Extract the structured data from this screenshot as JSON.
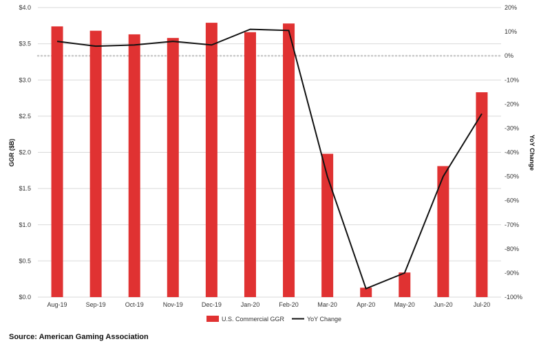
{
  "chart_data": {
    "type": "bar+line",
    "categories": [
      "Aug-19",
      "Sep-19",
      "Oct-19",
      "Nov-19",
      "Dec-19",
      "Jan-20",
      "Feb-20",
      "Mar-20",
      "Apr-20",
      "May-20",
      "Jun-20",
      "Jul-20"
    ],
    "series": [
      {
        "name": "U.S. Commercial GGR",
        "type": "bar",
        "axis": "left",
        "color": "#e03232",
        "values": [
          3.74,
          3.68,
          3.63,
          3.58,
          3.79,
          3.66,
          3.78,
          1.98,
          0.13,
          0.34,
          1.81,
          2.83
        ]
      },
      {
        "name": "YoY Change",
        "type": "line",
        "axis": "right",
        "color": "#111111",
        "values": [
          6,
          4,
          4.5,
          6,
          4.5,
          11,
          10.5,
          -50,
          -96.5,
          -90,
          -50,
          -24
        ]
      }
    ],
    "ylabel": "GGR ($B)",
    "y2label": "YoY Change",
    "ylim": [
      0,
      4
    ],
    "y2lim": [
      -100,
      20
    ],
    "yticks": [
      "$0.0",
      "$0.5",
      "$1.0",
      "$1.5",
      "$2.0",
      "$2.5",
      "$3.0",
      "$3.5",
      "$4.0"
    ],
    "y2ticks": [
      "-100%",
      "-90%",
      "-80%",
      "-70%",
      "-60%",
      "-50%",
      "-40%",
      "-30%",
      "-20%",
      "-10%",
      "0%",
      "10%",
      "20%"
    ],
    "zero_line": "dotted, on right axis",
    "grid": "horizontal",
    "legend": "bottom-center"
  },
  "source_text": "Source: American Gaming Association"
}
